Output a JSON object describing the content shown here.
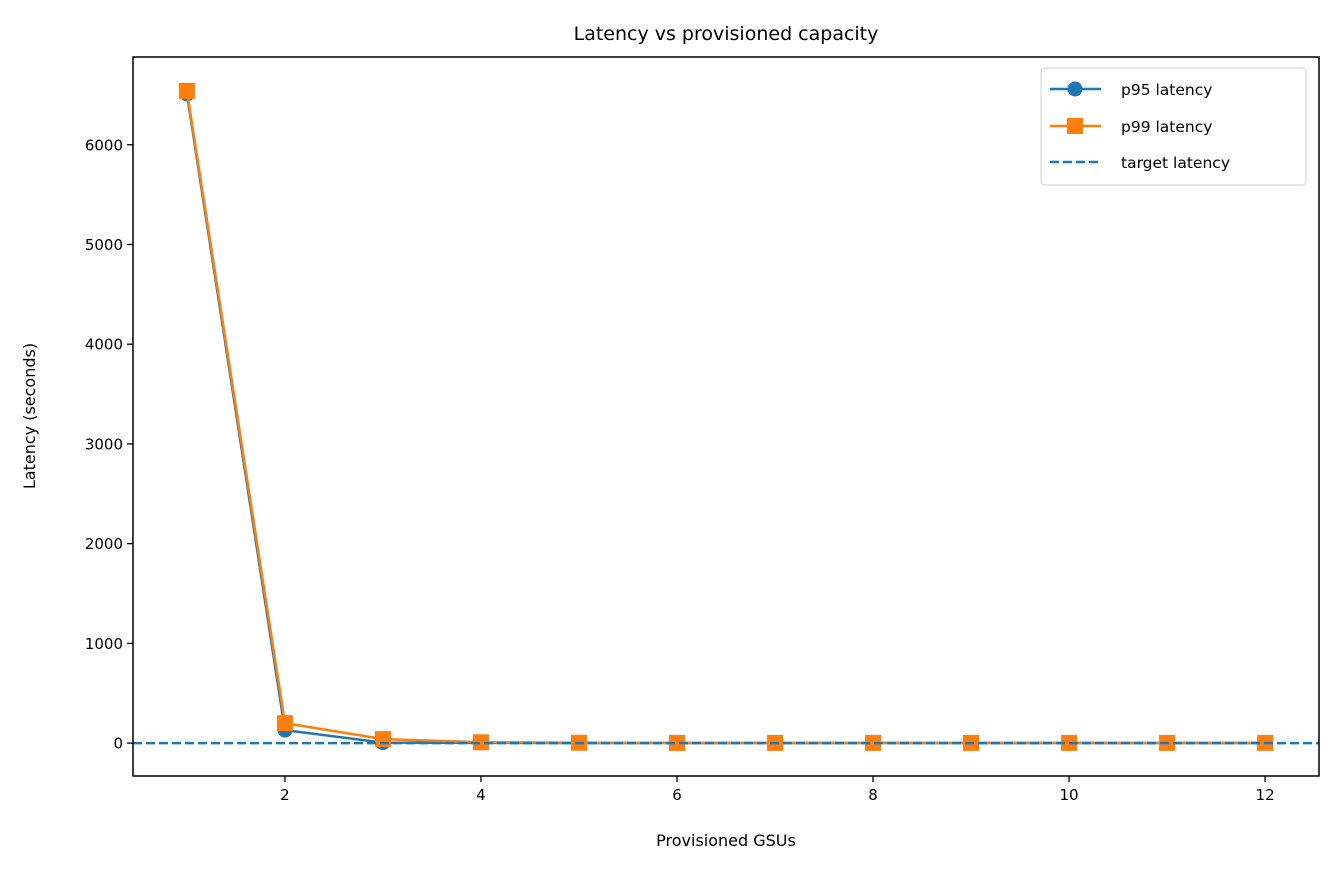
{
  "chart_data": {
    "type": "line",
    "title": "Latency vs provisioned capacity",
    "xlabel": "Provisioned GSUs",
    "ylabel": "Latency (seconds)",
    "x": [
      1,
      2,
      3,
      4,
      5,
      6,
      7,
      8,
      9,
      10,
      11,
      12
    ],
    "series": [
      {
        "name": "p95 latency",
        "color": "#1f77b4",
        "marker": "circle",
        "linestyle": "solid",
        "values": [
          6510,
          130,
          5,
          2,
          1,
          1,
          1,
          1,
          1,
          1,
          1,
          1
        ]
      },
      {
        "name": "p99 latency",
        "color": "#ff7f0e",
        "marker": "square",
        "linestyle": "solid",
        "values": [
          6540,
          200,
          40,
          8,
          3,
          2,
          2,
          2,
          2,
          2,
          2,
          2
        ]
      }
    ],
    "reference_lines": [
      {
        "name": "target latency",
        "color": "#1f77b4",
        "linestyle": "dashed",
        "orientation": "horizontal",
        "y": 0
      }
    ],
    "xticks": [
      2,
      4,
      6,
      8,
      10,
      12
    ],
    "yticks": [
      0,
      1000,
      2000,
      3000,
      4000,
      5000,
      6000
    ],
    "xlim": [
      0.45,
      12.55
    ],
    "ylim": [
      -330,
      6880
    ],
    "grid": false,
    "legend_position": "upper right"
  },
  "labels": {
    "title": "Latency vs provisioned capacity",
    "xlabel": "Provisioned GSUs",
    "ylabel": "Latency (seconds)",
    "legend": [
      "p95 latency",
      "p99 latency",
      "target latency"
    ]
  }
}
